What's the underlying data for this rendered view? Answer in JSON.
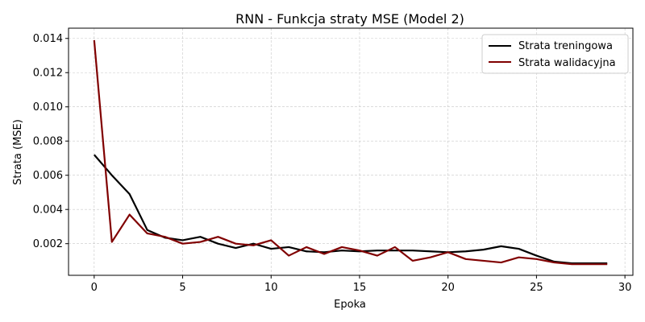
{
  "chart_data": {
    "type": "line",
    "title": "RNN - Funkcja straty MSE (Model 2)",
    "xlabel": "Epoka",
    "ylabel": "Strata (MSE)",
    "xlim": [
      -1.45,
      30.45
    ],
    "ylim": [
      0.00015,
      0.0146
    ],
    "xticks": [
      0,
      5,
      10,
      15,
      20,
      25,
      30
    ],
    "xtick_labels": [
      "0",
      "5",
      "10",
      "15",
      "20",
      "25",
      "30"
    ],
    "yticks": [
      0.002,
      0.004,
      0.006,
      0.008,
      0.01,
      0.012,
      0.014
    ],
    "ytick_labels": [
      "0.002",
      "0.004",
      "0.006",
      "0.008",
      "0.010",
      "0.012",
      "0.014"
    ],
    "grid": true,
    "legend_position": "top-right",
    "x": [
      0,
      1,
      2,
      3,
      4,
      5,
      6,
      7,
      8,
      9,
      10,
      11,
      12,
      13,
      14,
      15,
      16,
      17,
      18,
      19,
      20,
      21,
      22,
      23,
      24,
      25,
      26,
      27,
      28,
      29
    ],
    "series": [
      {
        "name": "Strata treningowa",
        "color": "#000000",
        "values": [
          0.0072,
          0.006,
          0.0049,
          0.0028,
          0.00235,
          0.0022,
          0.0024,
          0.002,
          0.00175,
          0.002,
          0.0017,
          0.0018,
          0.00155,
          0.0015,
          0.0016,
          0.00155,
          0.0016,
          0.0016,
          0.0016,
          0.00155,
          0.0015,
          0.00155,
          0.00165,
          0.00185,
          0.0017,
          0.0013,
          0.00095,
          0.00085,
          0.00085,
          0.00085
        ]
      },
      {
        "name": "Strata walidacyjna",
        "color": "#800000",
        "values": [
          0.0139,
          0.0021,
          0.0037,
          0.0026,
          0.0024,
          0.002,
          0.0021,
          0.0024,
          0.002,
          0.0019,
          0.0022,
          0.0013,
          0.0018,
          0.0014,
          0.0018,
          0.0016,
          0.0013,
          0.0018,
          0.001,
          0.0012,
          0.0015,
          0.0011,
          0.001,
          0.0009,
          0.0012,
          0.0011,
          0.0009,
          0.0008,
          0.0008,
          0.0008
        ]
      }
    ]
  }
}
